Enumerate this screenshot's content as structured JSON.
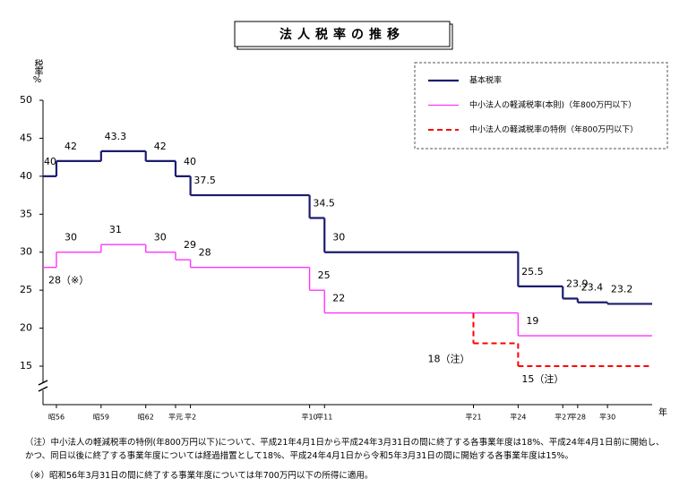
{
  "chart_data": {
    "type": "step",
    "title": "法人税率の推移",
    "y_label": "税率%",
    "x_label": "年",
    "xlim": [
      1980.1,
      2021
    ],
    "ylim": [
      15,
      50
    ],
    "yticks": [
      15,
      20,
      25,
      30,
      35,
      40,
      45,
      50
    ],
    "xticks": [
      {
        "value": 1981,
        "label": "昭56"
      },
      {
        "value": 1984,
        "label": "昭59"
      },
      {
        "value": 1987,
        "label": "昭62"
      },
      {
        "value": 1989,
        "label": "平元"
      },
      {
        "value": 1990,
        "label": "平2"
      },
      {
        "value": 1998,
        "label": "平10"
      },
      {
        "value": 1999,
        "label": "平11"
      },
      {
        "value": 2009,
        "label": "平21"
      },
      {
        "value": 2012,
        "label": "平24"
      },
      {
        "value": 2015,
        "label": "平27"
      },
      {
        "value": 2016,
        "label": "平28"
      },
      {
        "value": 2018,
        "label": "平30"
      }
    ],
    "grid": false,
    "series": [
      {
        "name": "基本税率",
        "color": "#1c1c70",
        "dash": false,
        "x": [
          1980.1,
          1981,
          1984,
          1987,
          1989,
          1990,
          1998,
          1999,
          2012,
          2015,
          2016,
          2018
        ],
        "values": [
          40,
          42,
          43.3,
          42,
          40,
          37.5,
          34.5,
          30,
          25.5,
          23.9,
          23.4,
          23.2
        ]
      },
      {
        "name": "中小法人の軽減税率(本則)（年800万円以下）",
        "color": "#ff33ff",
        "dash": false,
        "x": [
          1980.1,
          1981,
          1984,
          1987,
          1989,
          1990,
          1998,
          1999,
          2012
        ],
        "values": [
          28,
          30,
          31,
          30,
          29,
          28,
          25,
          22,
          19
        ],
        "value_labels": [
          "28（※）",
          "30",
          "31",
          "30",
          "29",
          "28",
          "25",
          "22",
          "19"
        ]
      },
      {
        "name": "中小法人の軽減税率の特例（年800万円以下）",
        "color": "#ff0000",
        "dash": true,
        "x": [
          2009,
          2009,
          2012
        ],
        "values": [
          22,
          18,
          15
        ],
        "value_labels": [
          null,
          "18（注）",
          "15（注）"
        ]
      }
    ],
    "notes": [
      "（注）中小法人の軽減税率の特例(年800万円以下)について、平成21年4月1日から平成24年3月31日の間に終了する各事業年度は18%、平成24年4月1日前に開始し、かつ、同日以後に終了する事業年度については経過措置として18%、平成24年4月1日から令和5年3月31日の間に開始する各事業年度は15%。",
      "（※）昭和56年3月31日の間に終了する事業年度については年700万円以下の所得に適用。"
    ]
  }
}
